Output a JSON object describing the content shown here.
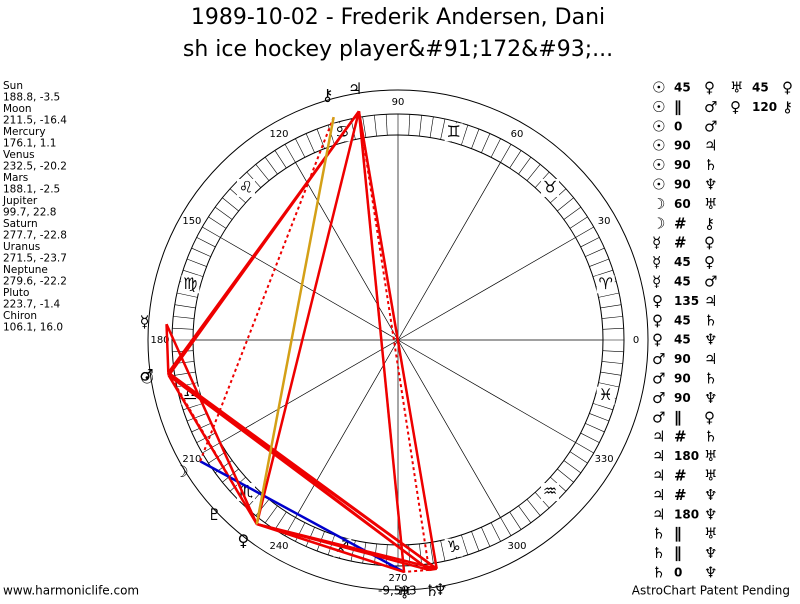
{
  "title_lines": [
    "1989-10-02 - Frederik Andersen, Dani",
    "sh ice hockey player&#91;172&#93;..."
  ],
  "planets": [
    {
      "name": "Sun",
      "glyph": "☉",
      "position": {
        "value": 188.8,
        "label": "188.8, -3.5"
      }
    },
    {
      "name": "Moon",
      "glyph": "☽",
      "position": {
        "value": 211.5,
        "label": "211.5, -16.4"
      }
    },
    {
      "name": "Mercury",
      "glyph": "☿",
      "position": {
        "value": 176.1,
        "label": "176.1, 1.1"
      }
    },
    {
      "name": "Venus",
      "glyph": "♀",
      "position": {
        "value": 232.5,
        "label": "232.5, -20.2"
      }
    },
    {
      "name": "Mars",
      "glyph": "♂",
      "position": {
        "value": 188.1,
        "label": "188.1, -2.5"
      }
    },
    {
      "name": "Jupiter",
      "glyph": "♃",
      "position": {
        "value": 99.7,
        "label": "99.7, 22.8"
      }
    },
    {
      "name": "Saturn",
      "glyph": "♄",
      "position": {
        "value": 277.7,
        "label": "277.7, -22.8"
      }
    },
    {
      "name": "Uranus",
      "glyph": "♅",
      "position": {
        "value": 271.5,
        "label": "271.5, -23.7"
      }
    },
    {
      "name": "Neptune",
      "glyph": "♆",
      "position": {
        "value": 279.6,
        "label": "279.6, -22.2"
      }
    },
    {
      "name": "Pluto",
      "glyph": "♇",
      "position": {
        "value": 223.7,
        "label": "223.7, -1.4"
      }
    },
    {
      "name": "Chiron",
      "glyph": "⚷",
      "position": {
        "value": 106.1,
        "label": "106.1, 16.0"
      }
    }
  ],
  "signs": [
    "♈",
    "♉",
    "♊",
    "♋",
    "♌",
    "♍",
    "♎",
    "♏",
    "♐",
    "♑",
    "♒",
    "♓"
  ],
  "degree_ticks": [
    0,
    30,
    60,
    90,
    120,
    150,
    180,
    210,
    240,
    270,
    300,
    330
  ],
  "aspects": [
    [
      [
        "☉",
        45,
        "♀"
      ],
      [
        "☉",
        "∥",
        "♂"
      ],
      [
        "☉",
        0,
        "♂"
      ],
      [
        "☉",
        90,
        "♃"
      ],
      [
        "☉",
        90,
        "♄"
      ],
      [
        "☉",
        90,
        "♆"
      ],
      [
        "☽",
        60,
        "♅"
      ],
      [
        "☽",
        "#",
        "⚷"
      ],
      [
        "☿",
        "#",
        "♀"
      ],
      [
        "☿",
        45,
        "♀"
      ],
      [
        "☿",
        45,
        "♂"
      ],
      [
        "♀",
        135,
        "♃"
      ],
      [
        "♀",
        45,
        "♄"
      ],
      [
        "♀",
        45,
        "♆"
      ],
      [
        "♂",
        90,
        "♃"
      ],
      [
        "♂",
        90,
        "♄"
      ],
      [
        "♂",
        90,
        "♆"
      ],
      [
        "♂",
        "∥",
        "♀"
      ],
      [
        "♃",
        "#",
        "♄"
      ],
      [
        "♃",
        180,
        "♅"
      ],
      [
        "♃",
        "#",
        "♅"
      ],
      [
        "♃",
        "#",
        "♆"
      ],
      [
        "♃",
        180,
        "♆"
      ],
      [
        "♄",
        "∥",
        "♅"
      ],
      [
        "♄",
        "∥",
        "♆"
      ],
      [
        "♄",
        0,
        "♆"
      ]
    ],
    [
      [
        "♅",
        45,
        "♀"
      ],
      [
        "♀",
        120,
        "⚷"
      ]
    ]
  ],
  "footer": {
    "left": "www.harmoniclife.com",
    "center": "-9,593",
    "right": "AstroChart Patent Pending"
  }
}
